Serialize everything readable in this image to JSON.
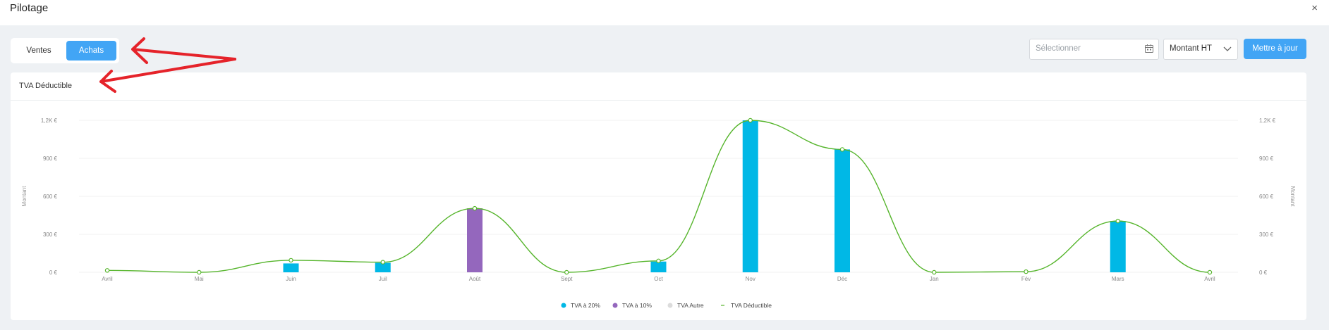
{
  "page": {
    "title": "Pilotage",
    "close_glyph": "×"
  },
  "toggle": {
    "ventes_label": "Ventes",
    "achats_label": "Achats",
    "active": "Achats"
  },
  "controls": {
    "date_placeholder": "Sélectionner",
    "calendar_icon": "calendar-icon",
    "amount_select_value": "Montant HT",
    "update_label": "Mettre à jour"
  },
  "colors": {
    "accent": "#42a5f5",
    "tva20": "#00b8e6",
    "tva10": "#9467bd",
    "tva_autre": "#dcdcdc",
    "line": "#56b52c",
    "annotation_arrow": "#e5232a"
  },
  "chart_data": {
    "type": "bar",
    "title": "TVA Déductible",
    "ylabel": "Montant",
    "ylabel_right": "Montant",
    "ylim": [
      0,
      1200
    ],
    "yticks": [
      "0 €",
      "300 €",
      "600 €",
      "900 €",
      "1,2K €"
    ],
    "categories": [
      "Avril",
      "Mai",
      "Juin",
      "Juil",
      "Août",
      "Sept",
      "Oct",
      "Nov",
      "Déc",
      "Jan",
      "Fév",
      "Mars",
      "Avril"
    ],
    "series": [
      {
        "name": "TVA à 20%",
        "type": "bar",
        "color": "#00b8e6",
        "values": [
          0,
          0,
          70,
          75,
          0,
          0,
          85,
          1200,
          970,
          0,
          0,
          405,
          0
        ]
      },
      {
        "name": "TVA à 10%",
        "type": "bar",
        "color": "#9467bd",
        "values": [
          0,
          0,
          0,
          0,
          505,
          0,
          0,
          0,
          0,
          0,
          0,
          0,
          0
        ]
      },
      {
        "name": "TVA Autre",
        "type": "bar",
        "color": "#dcdcdc",
        "values": [
          0,
          0,
          0,
          0,
          0,
          0,
          0,
          0,
          0,
          0,
          0,
          0,
          0
        ]
      },
      {
        "name": "TVA Déductible",
        "type": "line",
        "color": "#56b52c",
        "values": [
          15,
          0,
          95,
          80,
          505,
          0,
          90,
          1200,
          970,
          0,
          5,
          405,
          0
        ]
      }
    ],
    "legend_position": "bottom-center",
    "grid": true
  }
}
